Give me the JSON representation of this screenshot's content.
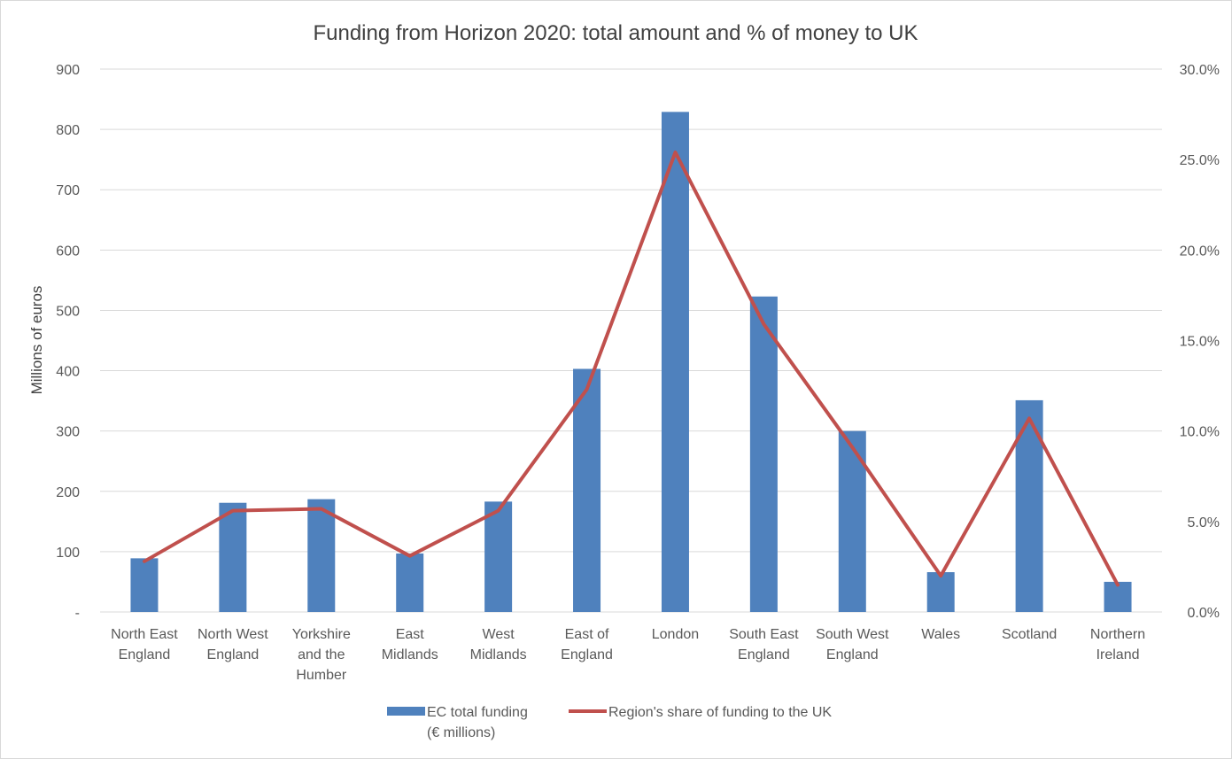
{
  "chart_data": {
    "type": "bar",
    "title": "Funding from Horizon 2020:  total amount and % of money to UK",
    "ylabel": "Millions of euros",
    "y2label": "",
    "ylim": [
      0,
      900
    ],
    "y2lim": [
      0,
      0.3
    ],
    "y_ticks": [
      "-",
      "100",
      "200",
      "300",
      "400",
      "500",
      "600",
      "700",
      "800",
      "900"
    ],
    "y2_ticks": [
      "0.0%",
      "5.0%",
      "10.0%",
      "15.0%",
      "20.0%",
      "25.0%",
      "30.0%"
    ],
    "grid": true,
    "legend_position": "bottom",
    "categories": [
      [
        "North East",
        "England"
      ],
      [
        "North West",
        "England"
      ],
      [
        "Yorkshire",
        "and the",
        "Humber"
      ],
      [
        "East",
        "Midlands"
      ],
      [
        "West",
        "Midlands"
      ],
      [
        "East of",
        "England"
      ],
      [
        "London"
      ],
      [
        "South East",
        "England"
      ],
      [
        "South West",
        "England"
      ],
      [
        "Wales"
      ],
      [
        "Scotland"
      ],
      [
        "Northern",
        "Ireland"
      ]
    ],
    "series": [
      {
        "name": "EC total funding (€ millions)",
        "legend_lines": [
          "EC total funding",
          "(€ millions)"
        ],
        "type": "bar",
        "axis": "left",
        "color": "#4f81bd",
        "values": [
          89,
          181,
          187,
          97,
          183,
          403,
          829,
          523,
          300,
          66,
          351,
          50
        ]
      },
      {
        "name": "Region's share of funding to the UK",
        "legend_lines": [
          "Region's share of funding to the UK"
        ],
        "type": "line",
        "axis": "right",
        "color": "#c0504d",
        "values": [
          0.028,
          0.056,
          0.057,
          0.031,
          0.056,
          0.123,
          0.254,
          0.159,
          0.091,
          0.02,
          0.107,
          0.015
        ]
      }
    ]
  }
}
